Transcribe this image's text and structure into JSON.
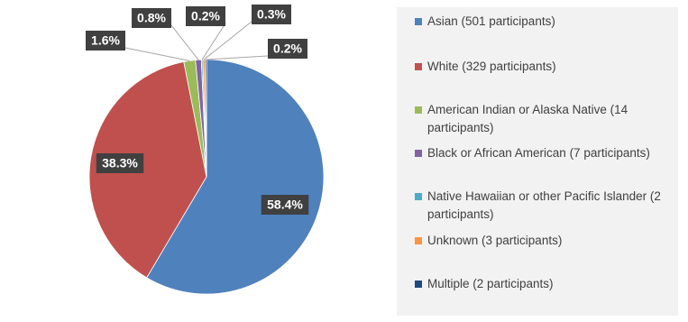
{
  "chart_data": {
    "type": "pie",
    "categories": [
      "Asian (501 participants)",
      "White (329 participants)",
      "American Indian or Alaska Native (14 participants)",
      "Black or African American (7 participants)",
      "Native Hawaiian or other Pacific Islander (2 participants)",
      "Unknown (3 participants)",
      "Multiple (2 participants)"
    ],
    "values": [
      58.4,
      38.3,
      1.6,
      0.8,
      0.2,
      0.3,
      0.2
    ],
    "value_labels": [
      "58.4%",
      "38.3%",
      "1.6%",
      "0.8%",
      "0.2%",
      "0.3%",
      "0.2%"
    ],
    "colors": [
      "#4f81bd",
      "#c0504d",
      "#9bbb59",
      "#8064a2",
      "#4bacc6",
      "#f79646",
      "#1f497d"
    ],
    "legend": "right"
  }
}
